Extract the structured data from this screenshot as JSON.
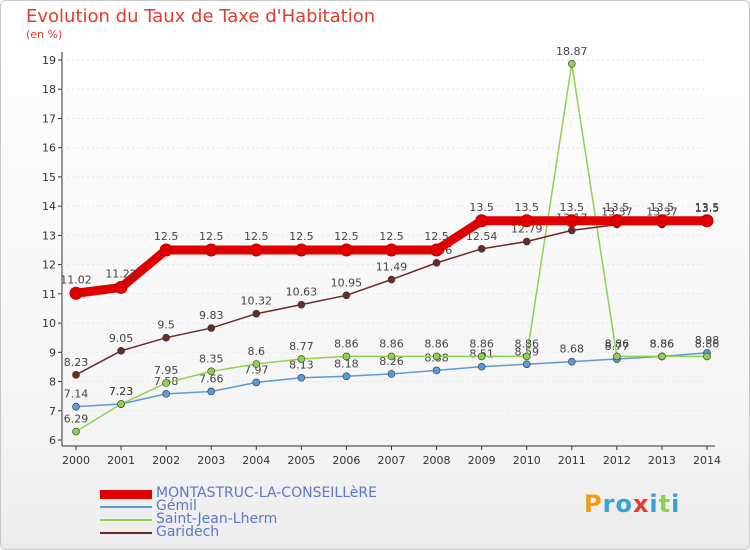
{
  "title": "Evolution du Taux de Taxe d'Habitation",
  "unit_label": "(en %)",
  "logo_text": "Proxiti",
  "chart_data": {
    "type": "line",
    "title": "Evolution du Taux de Taxe d'Habitation",
    "ylabel": "(en %)",
    "xlabel": "",
    "x": [
      "2000",
      "2001",
      "2002",
      "2003",
      "2004",
      "2005",
      "2006",
      "2007",
      "2008",
      "2009",
      "2010",
      "2011",
      "2012",
      "2013",
      "2014"
    ],
    "ylim": [
      6,
      19
    ],
    "yticks": [
      6,
      7,
      8,
      9,
      10,
      11,
      12,
      13,
      14,
      15,
      16,
      17,
      18,
      19
    ],
    "grid": false,
    "legend_position": "bottom",
    "series": [
      {
        "name": "MONTASTRUC-LA-CONSEILLèRE",
        "color": "#e00000",
        "values": [
          11.02,
          11.22,
          12.5,
          12.5,
          12.5,
          12.5,
          12.5,
          12.5,
          12.5,
          13.5,
          13.5,
          13.5,
          13.5,
          13.5,
          13.5
        ],
        "labels": [
          "11.02",
          "11.22",
          "12.5",
          "12.5",
          "12.5",
          "12.5",
          "12.5",
          "12.5",
          "12.5",
          "13.5",
          "13.5",
          "13.5",
          "13.5",
          "13.5",
          "13.5"
        ]
      },
      {
        "name": "Gémil",
        "color": "#5b9bd5",
        "values": [
          7.14,
          7.23,
          7.58,
          7.66,
          7.97,
          8.13,
          8.18,
          8.26,
          8.38,
          8.51,
          8.59,
          8.68,
          8.77,
          8.86,
          8.98
        ],
        "labels": [
          "7.14",
          "7.23",
          "7.58",
          "7.66",
          "7.97",
          "8.13",
          "8.18",
          "8.26",
          "8.38",
          "8.51",
          "8.59",
          "8.68",
          "8.77",
          "8.86",
          "8.98"
        ]
      },
      {
        "name": "Saint-Jean-Lherm",
        "color": "#8fd14f",
        "values": [
          6.29,
          7.23,
          7.95,
          8.35,
          8.6,
          8.77,
          8.86,
          8.86,
          8.86,
          8.86,
          8.86,
          18.87,
          8.86,
          8.86,
          8.86
        ],
        "labels": [
          "6.29",
          "7.23",
          "7.95",
          "8.35",
          "8.6",
          "8.77",
          "8.86",
          "8.86",
          "8.86",
          "8.86",
          "8.86",
          "18.87",
          "8.86",
          "8.86",
          "8.86"
        ]
      },
      {
        "name": "Garidech",
        "color": "#6b2a2a",
        "values": [
          8.23,
          9.05,
          9.5,
          9.83,
          10.32,
          10.63,
          10.95,
          11.49,
          12.06,
          12.54,
          12.79,
          13.17,
          13.37,
          13.37,
          13.5
        ],
        "labels": [
          "8.23",
          "9.05",
          "9.5",
          "9.83",
          "10.32",
          "10.63",
          "10.95",
          "11.49",
          "12.06",
          "12.54",
          "12.79",
          "13.17",
          "13.37",
          "13.37",
          "13.5"
        ]
      }
    ]
  }
}
